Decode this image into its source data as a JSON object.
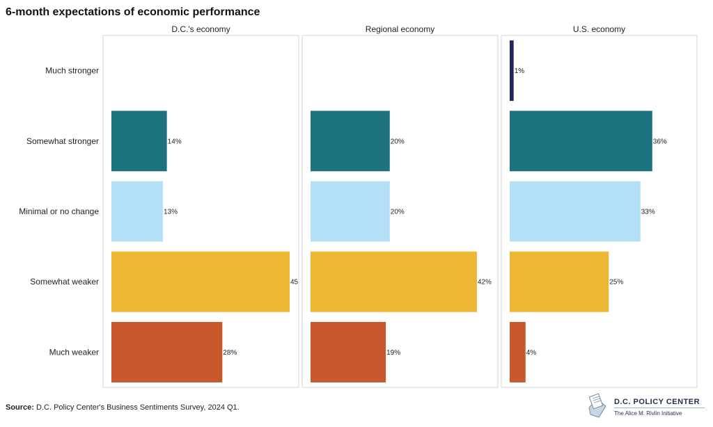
{
  "title": "6-month expectations of economic performance",
  "source_label": "Source:",
  "source_text": "D.C. Policy Center's Business Sentiments Survey, 2024 Q1.",
  "logo": {
    "name": "D.C. POLICY CENTER",
    "subtitle": "The Alice M. Rivlin Initiative"
  },
  "colors": {
    "Much stronger": "#22275e",
    "Somewhat stronger": "#1d7480",
    "Minimal or no change": "#b3e0f7",
    "Somewhat weaker": "#ebb734",
    "Much weaker": "#c7592c"
  },
  "chart_data": {
    "type": "bar",
    "orientation": "horizontal",
    "categories": [
      "Much stronger",
      "Somewhat stronger",
      "Minimal or no change",
      "Somewhat weaker",
      "Much weaker"
    ],
    "xlim": [
      0,
      45
    ],
    "grid": false,
    "panels": [
      {
        "name": "D.C.'s economy",
        "values": [
          null,
          14,
          13,
          45,
          28
        ],
        "labels": [
          "",
          "14%",
          "13%",
          "45",
          "28%"
        ]
      },
      {
        "name": "Regional economy",
        "values": [
          null,
          20,
          20,
          42,
          19
        ],
        "labels": [
          "",
          "20%",
          "20%",
          "42%",
          "19%"
        ]
      },
      {
        "name": "U.S. economy",
        "values": [
          1,
          36,
          33,
          25,
          4
        ],
        "labels": [
          "1%",
          "36%",
          "33%",
          "25%",
          "4%"
        ]
      }
    ]
  }
}
